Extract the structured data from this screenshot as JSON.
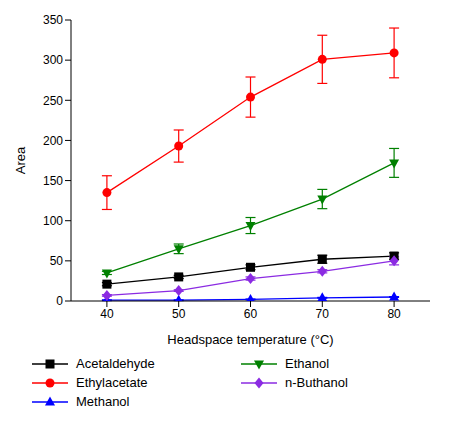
{
  "chart_data": {
    "type": "line",
    "x_label": "Headspace temperature (°C)",
    "y_label": "Area",
    "x": [
      40,
      50,
      60,
      70,
      80
    ],
    "xlim": [
      35,
      85
    ],
    "xticks": [
      40,
      50,
      60,
      70,
      80
    ],
    "ylim": [
      0,
      350
    ],
    "yticks": [
      0,
      50,
      100,
      150,
      200,
      250,
      300,
      350
    ],
    "grid": false,
    "legend": "bottom",
    "series": [
      {
        "name": "Acetaldehyde",
        "color": "#000000",
        "marker": "square",
        "values": [
          21,
          30,
          42,
          52,
          56
        ],
        "error": [
          2,
          2,
          3,
          5,
          4
        ]
      },
      {
        "name": "Ethylacetate",
        "color": "#ff0000",
        "marker": "circle",
        "values": [
          135,
          193,
          254,
          301,
          309
        ],
        "error": [
          21,
          20,
          25,
          30,
          31
        ]
      },
      {
        "name": "Methanol",
        "color": "#0000ff",
        "marker": "triangle-up",
        "values": [
          1,
          1,
          2,
          4,
          5
        ],
        "error": [
          0.5,
          0.5,
          0.5,
          0.5,
          0.5
        ]
      },
      {
        "name": "Ethanol",
        "color": "#008000",
        "marker": "triangle-down",
        "values": [
          35,
          65,
          94,
          127,
          172
        ],
        "error": [
          2,
          6,
          10,
          12,
          18
        ]
      },
      {
        "name": "n-Buthanol",
        "color": "#8b2be2",
        "marker": "diamond",
        "values": [
          7,
          13,
          28,
          37,
          50
        ],
        "error": [
          1,
          1,
          2,
          2,
          5
        ]
      }
    ]
  }
}
